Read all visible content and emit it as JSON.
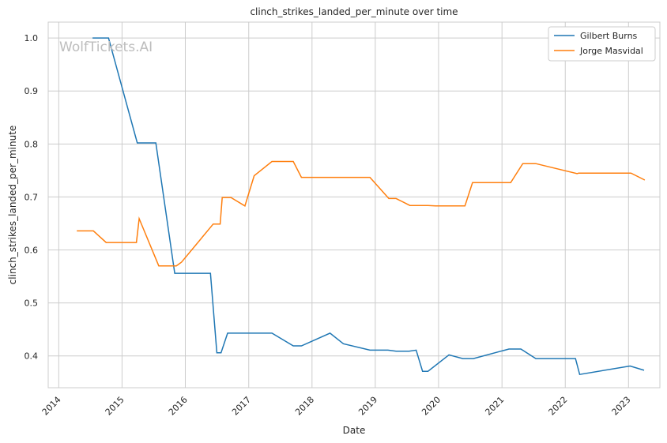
{
  "watermark": "WolfTickets.AI",
  "chart_data": {
    "type": "line",
    "title": "clinch_strikes_landed_per_minute over time",
    "xlabel": "Date",
    "ylabel": "clinch_strikes_landed_per_minute",
    "xlim": [
      "2013-11-01",
      "2023-07-01"
    ],
    "ylim": [
      0.34,
      1.03
    ],
    "x_ticks": [
      "2014",
      "2015",
      "2016",
      "2017",
      "2018",
      "2019",
      "2020",
      "2021",
      "2022",
      "2023"
    ],
    "y_ticks": [
      "0.4",
      "0.5",
      "0.6",
      "0.7",
      "0.8",
      "0.9",
      "1.0"
    ],
    "grid": true,
    "legend_position": "top-right",
    "series": [
      {
        "name": "Gilbert Burns",
        "color": "#1f77b4",
        "points": [
          [
            "2014-07-15",
            1.0
          ],
          [
            "2014-10-15",
            1.0
          ],
          [
            "2015-03-30",
            0.802
          ],
          [
            "2015-07-15",
            0.802
          ],
          [
            "2015-11-01",
            0.556
          ],
          [
            "2016-05-25",
            0.556
          ],
          [
            "2016-07-01",
            0.406
          ],
          [
            "2016-07-25",
            0.406
          ],
          [
            "2016-09-01",
            0.443
          ],
          [
            "2017-05-15",
            0.443
          ],
          [
            "2017-09-15",
            0.419
          ],
          [
            "2017-11-01",
            0.419
          ],
          [
            "2018-04-15",
            0.443
          ],
          [
            "2018-07-01",
            0.423
          ],
          [
            "2018-12-01",
            0.411
          ],
          [
            "2019-03-15",
            0.411
          ],
          [
            "2019-05-01",
            0.409
          ],
          [
            "2019-07-15",
            0.409
          ],
          [
            "2019-08-25",
            0.411
          ],
          [
            "2019-10-01",
            0.371
          ],
          [
            "2019-11-01",
            0.371
          ],
          [
            "2020-03-01",
            0.402
          ],
          [
            "2020-05-20",
            0.395
          ],
          [
            "2020-07-20",
            0.395
          ],
          [
            "2021-02-10",
            0.413
          ],
          [
            "2021-04-20",
            0.413
          ],
          [
            "2021-07-15",
            0.395
          ],
          [
            "2022-03-01",
            0.395
          ],
          [
            "2022-03-25",
            0.365
          ],
          [
            "2023-01-10",
            0.381
          ],
          [
            "2023-04-01",
            0.373
          ]
        ]
      },
      {
        "name": "Jorge Masvidal",
        "color": "#ff7f0e",
        "points": [
          [
            "2014-04-15",
            0.636
          ],
          [
            "2014-07-20",
            0.636
          ],
          [
            "2014-10-01",
            0.614
          ],
          [
            "2015-03-25",
            0.614
          ],
          [
            "2015-04-10",
            0.659
          ],
          [
            "2015-08-01",
            0.57
          ],
          [
            "2015-11-10",
            0.57
          ],
          [
            "2015-12-10",
            0.577
          ],
          [
            "2016-06-10",
            0.649
          ],
          [
            "2016-07-20",
            0.649
          ],
          [
            "2016-08-01",
            0.699
          ],
          [
            "2016-09-20",
            0.699
          ],
          [
            "2016-12-10",
            0.683
          ],
          [
            "2017-02-01",
            0.74
          ],
          [
            "2017-05-15",
            0.767
          ],
          [
            "2017-09-15",
            0.767
          ],
          [
            "2017-11-01",
            0.737
          ],
          [
            "2018-12-01",
            0.737
          ],
          [
            "2019-03-20",
            0.697
          ],
          [
            "2019-05-01",
            0.697
          ],
          [
            "2019-07-20",
            0.684
          ],
          [
            "2019-11-01",
            0.684
          ],
          [
            "2019-12-15",
            0.683
          ],
          [
            "2020-06-01",
            0.683
          ],
          [
            "2020-07-15",
            0.727
          ],
          [
            "2021-02-20",
            0.727
          ],
          [
            "2021-05-01",
            0.763
          ],
          [
            "2021-07-15",
            0.763
          ],
          [
            "2022-03-10",
            0.744
          ],
          [
            "2022-03-20",
            0.745
          ],
          [
            "2023-01-15",
            0.745
          ],
          [
            "2023-04-05",
            0.732
          ]
        ]
      }
    ]
  }
}
